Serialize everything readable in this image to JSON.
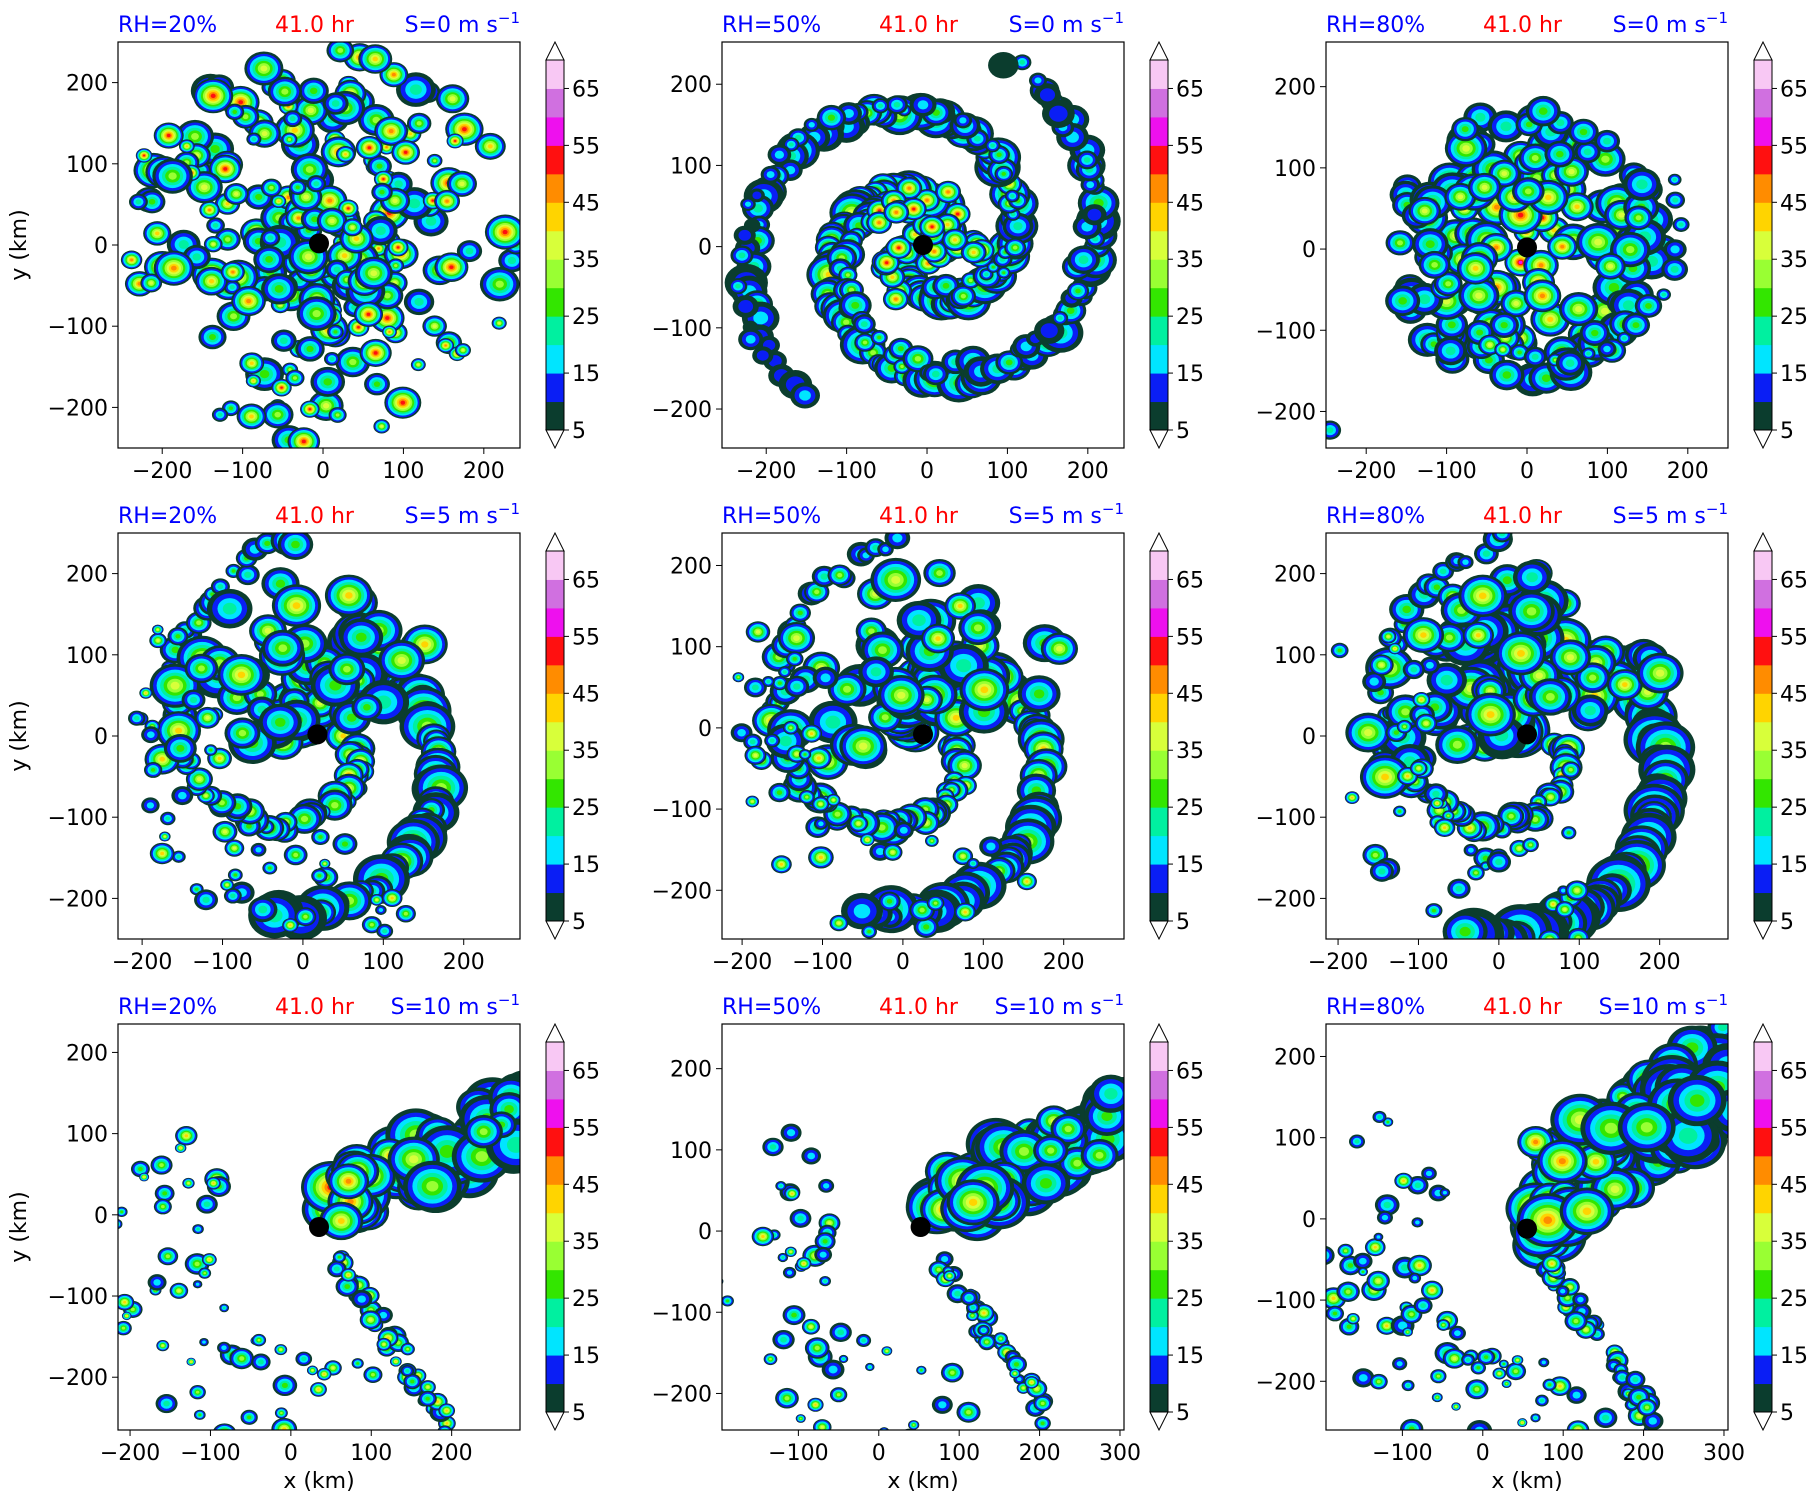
{
  "colors": {
    "rh_label": "#0000ff",
    "time_label": "#ff0000",
    "shear_label": "#0000ff",
    "levels": [
      "#0b3d2e",
      "#0a1ef5",
      "#00e5ff",
      "#00f0a0",
      "#33e600",
      "#99ff33",
      "#d8ff3a",
      "#ffd400",
      "#ff8c00",
      "#ff1010",
      "#ee10ee",
      "#d070e0",
      "#f8c8f4"
    ]
  },
  "chart_data": {
    "type": "contourf",
    "shared": {
      "time_label": "41.0 hr",
      "xlabel": "x (km)",
      "ylabel": "y (km)",
      "colorbar": {
        "levels": [
          5,
          10,
          15,
          20,
          25,
          30,
          35,
          40,
          45,
          50,
          55,
          60,
          65,
          70
        ],
        "tick_labels": [
          "5",
          "15",
          "25",
          "35",
          "45",
          "55",
          "65"
        ],
        "extend": "both"
      }
    },
    "panels": [
      {
        "rh_label": "RH=20%",
        "shear_label": "S=0 m s",
        "shear_exp": "−1",
        "xlim": [
          -255,
          245
        ],
        "ylim": [
          -250,
          250
        ],
        "xticks": [
          -200,
          -100,
          0,
          100,
          200
        ],
        "yticks": [
          -200,
          -100,
          0,
          100,
          200
        ],
        "center": [
          -5,
          2
        ],
        "show_xlabel": false,
        "show_ylabel": true,
        "pattern": "ring"
      },
      {
        "rh_label": "RH=50%",
        "shear_label": "S=0 m s",
        "shear_exp": "−1",
        "xlim": [
          -255,
          245
        ],
        "ylim": [
          -248,
          252
        ],
        "xticks": [
          -200,
          -100,
          0,
          100,
          200
        ],
        "yticks": [
          -200,
          -100,
          0,
          100,
          200
        ],
        "center": [
          -5,
          2
        ],
        "show_xlabel": false,
        "show_ylabel": false,
        "pattern": "spiral"
      },
      {
        "rh_label": "RH=80%",
        "shear_label": "S=0 m s",
        "shear_exp": "−1",
        "xlim": [
          -250,
          250
        ],
        "ylim": [
          -245,
          255
        ],
        "xticks": [
          -200,
          -100,
          0,
          100,
          200
        ],
        "yticks": [
          -200,
          -100,
          0,
          100,
          200
        ],
        "center": [
          0,
          2
        ],
        "show_xlabel": false,
        "show_ylabel": false,
        "pattern": "compact"
      },
      {
        "rh_label": "RH=20%",
        "shear_label": "S=5 m s",
        "shear_exp": "−1",
        "xlim": [
          -230,
          270
        ],
        "ylim": [
          -250,
          250
        ],
        "xticks": [
          -200,
          -100,
          0,
          100,
          200
        ],
        "yticks": [
          -200,
          -100,
          0,
          100,
          200
        ],
        "center": [
          18,
          2
        ],
        "show_xlabel": false,
        "show_ylabel": true,
        "pattern": "hook"
      },
      {
        "rh_label": "RH=50%",
        "shear_label": "S=5 m s",
        "shear_exp": "−1",
        "xlim": [
          -225,
          275
        ],
        "ylim": [
          -260,
          240
        ],
        "xticks": [
          -200,
          -100,
          0,
          100,
          200
        ],
        "yticks": [
          -200,
          -100,
          0,
          100,
          200
        ],
        "center": [
          25,
          -8
        ],
        "show_xlabel": false,
        "show_ylabel": false,
        "pattern": "hook"
      },
      {
        "rh_label": "RH=80%",
        "shear_label": "S=5 m s",
        "shear_exp": "−1",
        "xlim": [
          -215,
          285
        ],
        "ylim": [
          -250,
          250
        ],
        "xticks": [
          -200,
          -100,
          0,
          100,
          200
        ],
        "yticks": [
          -200,
          -100,
          0,
          100,
          200
        ],
        "center": [
          35,
          2
        ],
        "show_xlabel": false,
        "show_ylabel": false,
        "pattern": "hookbig"
      },
      {
        "rh_label": "RH=20%",
        "shear_label": "S=10 m s",
        "shear_exp": "−1",
        "xlim": [
          -215,
          285
        ],
        "ylim": [
          -265,
          235
        ],
        "xticks": [
          -200,
          -100,
          0,
          100,
          200
        ],
        "yticks": [
          -200,
          -100,
          0,
          100,
          200
        ],
        "center": [
          35,
          -15
        ],
        "show_xlabel": true,
        "show_ylabel": true,
        "pattern": "sheared"
      },
      {
        "rh_label": "RH=50%",
        "shear_label": "S=10 m s",
        "shear_exp": "−1",
        "xlim": [
          -195,
          305
        ],
        "ylim": [
          -245,
          255
        ],
        "xticks": [
          -100,
          0,
          100,
          200,
          300
        ],
        "yticks": [
          -200,
          -100,
          0,
          100,
          200
        ],
        "center": [
          52,
          5
        ],
        "show_xlabel": true,
        "show_ylabel": false,
        "pattern": "sheared"
      },
      {
        "rh_label": "RH=80%",
        "shear_label": "S=10 m s",
        "shear_exp": "−1",
        "xlim": [
          -195,
          305
        ],
        "ylim": [
          -260,
          240
        ],
        "xticks": [
          -100,
          0,
          100,
          200,
          300
        ],
        "yticks": [
          -200,
          -100,
          0,
          100,
          200
        ],
        "center": [
          55,
          -12
        ],
        "show_xlabel": true,
        "show_ylabel": false,
        "pattern": "shearedbig"
      }
    ]
  }
}
